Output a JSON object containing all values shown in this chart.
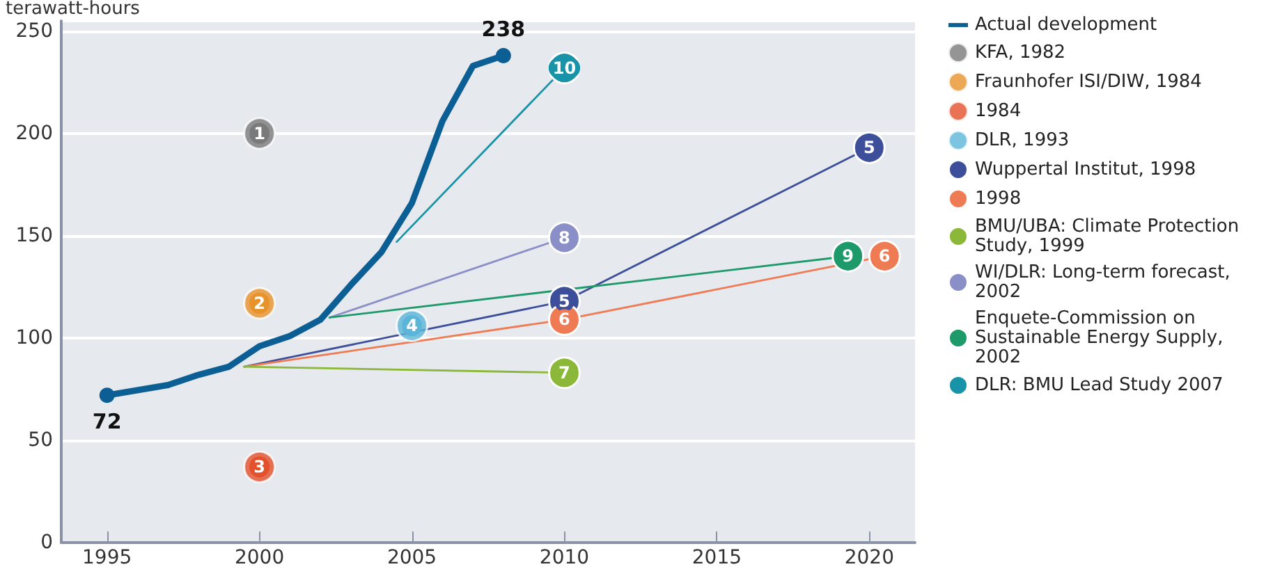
{
  "chart_data": {
    "type": "line",
    "ylabel": "terawatt-hours",
    "xlim": [
      1993.5,
      2021.5
    ],
    "xticks": [
      1995,
      2000,
      2005,
      2010,
      2015,
      2020
    ],
    "ylim": [
      0,
      255
    ],
    "yticks": [
      0,
      50,
      100,
      150,
      200,
      250
    ],
    "grid": "y",
    "legend": "right",
    "marker": "circle",
    "line_style": "solid",
    "series": [
      {
        "name": "Actual development",
        "color": "#0b5f94",
        "x": [
          1995,
          1997,
          1998,
          1999,
          2000,
          2001,
          2002,
          2003,
          2004,
          2005,
          2006,
          2007,
          2008
        ],
        "values": [
          72,
          77,
          82,
          86,
          96,
          101,
          109,
          126,
          142,
          166,
          206,
          233,
          238
        ],
        "value_labels": [
          "72",
          null,
          null,
          null,
          null,
          null,
          null,
          null,
          null,
          null,
          null,
          null,
          "238"
        ]
      },
      {
        "name": "KFA, 1982",
        "type": "scatter",
        "color": "#7a7a7a",
        "x": [
          2000
        ],
        "values": [
          200
        ]
      },
      {
        "name": "Fraunhofer ISI/DIW, 1984",
        "type": "scatter",
        "color": "#e8922a",
        "x": [
          2000
        ],
        "values": [
          117
        ]
      },
      {
        "name": "1984",
        "type": "scatter",
        "color": "#e4502a",
        "x": [
          2000
        ],
        "values": [
          37
        ]
      },
      {
        "name": "DLR, 1993",
        "type": "scatter",
        "color": "#5bb5d8",
        "x": [
          2005
        ],
        "values": [
          106
        ]
      },
      {
        "name": "Wuppertal Institut, 1998",
        "color": "#3d4f9a",
        "x": [
          1999.5,
          2010,
          2020
        ],
        "values": [
          86,
          118,
          193
        ]
      },
      {
        "name": "1998",
        "color": "#ef7b54",
        "x": [
          1999.5,
          2010,
          2020.5
        ],
        "values": [
          86,
          109,
          140
        ]
      },
      {
        "name": "BMU/UBA: Climate Protection Study, 1999",
        "color": "#8cb83a",
        "x": [
          1999.5,
          2010
        ],
        "values": [
          86,
          83
        ]
      },
      {
        "name": "WI/DLR: Long-term forecast, 2002",
        "color": "#8a8fc8",
        "x": [
          2002.3,
          2010
        ],
        "values": [
          110,
          149
        ]
      },
      {
        "name": "Enquete-Commission on Sustainable Energy Supply, 2002",
        "color": "#1e9a6a",
        "x": [
          2002.3,
          2019.3
        ],
        "values": [
          110,
          140
        ]
      },
      {
        "name": "DLR: BMU Lead Study 2007",
        "color": "#1993a8",
        "x": [
          2004.5,
          2010
        ],
        "values": [
          147,
          232
        ]
      }
    ],
    "annotations": [
      {
        "text": "1",
        "x": 2000,
        "y": 200
      },
      {
        "text": "2",
        "x": 2000,
        "y": 117
      },
      {
        "text": "3",
        "x": 2000,
        "y": 37
      },
      {
        "text": "4",
        "x": 2005,
        "y": 106
      },
      {
        "text": "5",
        "x": 2010,
        "y": 118
      },
      {
        "text": "5",
        "x": 2020,
        "y": 193
      },
      {
        "text": "6",
        "x": 2010,
        "y": 109
      },
      {
        "text": "6",
        "x": 2020.5,
        "y": 140
      },
      {
        "text": "7",
        "x": 2010,
        "y": 83
      },
      {
        "text": "8",
        "x": 2010,
        "y": 149
      },
      {
        "text": "9",
        "x": 2019.3,
        "y": 140
      },
      {
        "text": "10",
        "x": 2010,
        "y": 232
      }
    ]
  }
}
